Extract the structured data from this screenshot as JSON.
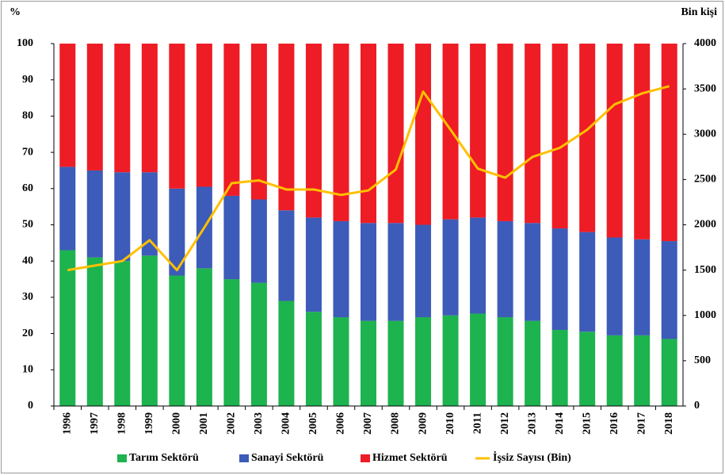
{
  "chart_data": {
    "type": "bar",
    "stacked": true,
    "y_label": "%",
    "y2_label": "Bin kişi",
    "categories": [
      "1996",
      "1997",
      "1998",
      "1999",
      "2000",
      "2001",
      "2002",
      "2003",
      "2004",
      "2005",
      "2006",
      "2007",
      "2008",
      "2009",
      "2010",
      "2011",
      "2012",
      "2013",
      "2014",
      "2015",
      "2016",
      "2017",
      "2018"
    ],
    "series": [
      {
        "name": "Tarım Sektörü",
        "color": "#1db34f",
        "values": [
          43,
          41,
          40,
          41.5,
          36,
          38,
          35,
          34,
          29,
          26,
          24.5,
          23.5,
          23.5,
          24.5,
          25,
          25.5,
          24.5,
          23.5,
          21,
          20.5,
          19.5,
          19.5,
          18.5
        ]
      },
      {
        "name": "Sanayi Sektörü",
        "color": "#3d5bb8",
        "values": [
          23,
          24,
          24.5,
          23,
          24,
          22.5,
          23,
          23,
          25,
          26,
          26.5,
          27,
          27,
          25.5,
          26.5,
          26.5,
          26.5,
          27,
          28,
          27.5,
          27,
          26.5,
          27
        ]
      },
      {
        "name": "Hizmet Sektörü",
        "color": "#ee1c25",
        "values": [
          34,
          35,
          35.5,
          35.5,
          40,
          39.5,
          42,
          43,
          46,
          48,
          49,
          49.5,
          49.5,
          50,
          48.5,
          48,
          49,
          49.5,
          51,
          52,
          53.5,
          54,
          54.5
        ]
      },
      {
        "name": "İşsiz Sayısı (Bin)",
        "color": "#ffc000",
        "type": "line",
        "axis": "y2",
        "values": [
          1500,
          1550,
          1600,
          1830,
          1500,
          1970,
          2460,
          2490,
          2390,
          2390,
          2330,
          2380,
          2610,
          3470,
          3050,
          2620,
          2520,
          2750,
          2850,
          3050,
          3330,
          3450,
          3530
        ]
      }
    ],
    "ylim": [
      0,
      100
    ],
    "yticks": [
      0,
      10,
      20,
      30,
      40,
      50,
      60,
      70,
      80,
      90,
      100
    ],
    "y2lim": [
      0,
      4000
    ],
    "y2ticks": [
      0,
      500,
      1000,
      1500,
      2000,
      2500,
      3000,
      3500,
      4000
    ],
    "grid": false,
    "legend": "bottom"
  }
}
